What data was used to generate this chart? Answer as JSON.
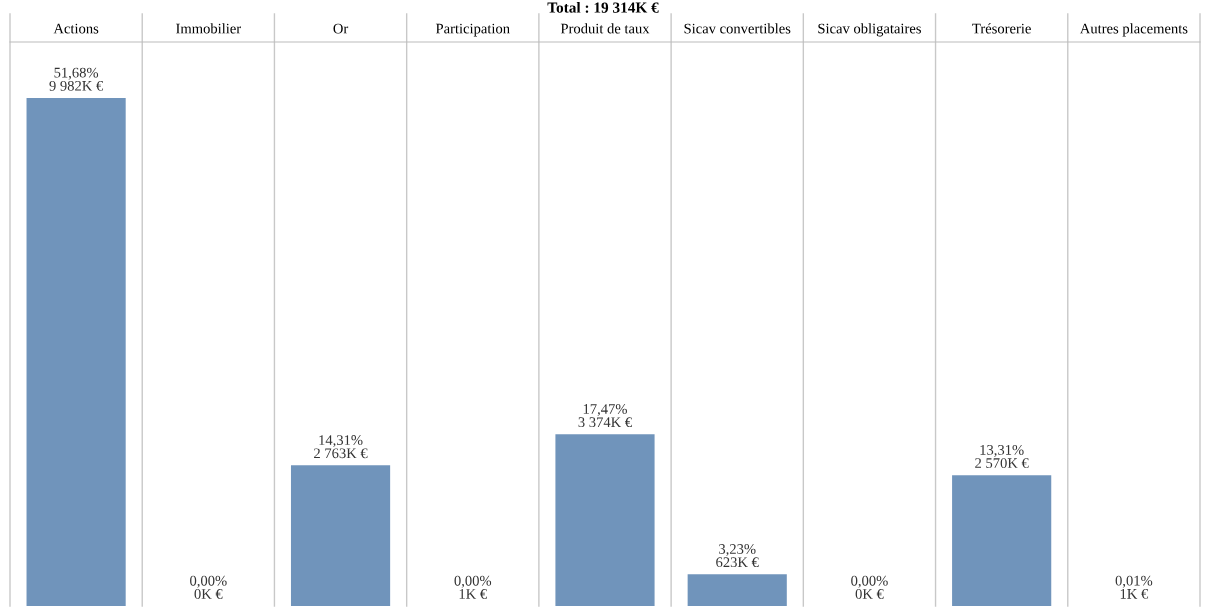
{
  "chart_data": {
    "type": "bar",
    "title": "Total : 19 314K €",
    "categories": [
      "Actions",
      "Immobilier",
      "Or",
      "Participation",
      "Produit de taux",
      "Sicav convertibles",
      "Sicav obligataires",
      "Trésorerie",
      "Autres placements"
    ],
    "values": [
      51.68,
      0,
      14.31,
      0,
      17.47,
      3.23,
      0,
      13.31,
      0.01
    ],
    "value_labels": [
      "51,68%\n9 982K €",
      "0,00%\n0K €",
      "14,31%\n2 763K €",
      "0,00%\n1K €",
      "17,47%\n3 374K €",
      "3,23%\n623K €",
      "0,00%\n0K €",
      "13,31%\n2 570K €",
      "0,01%\n1K €"
    ],
    "color": "#7094bb",
    "grid": "x",
    "tick_labels": "x"
  }
}
